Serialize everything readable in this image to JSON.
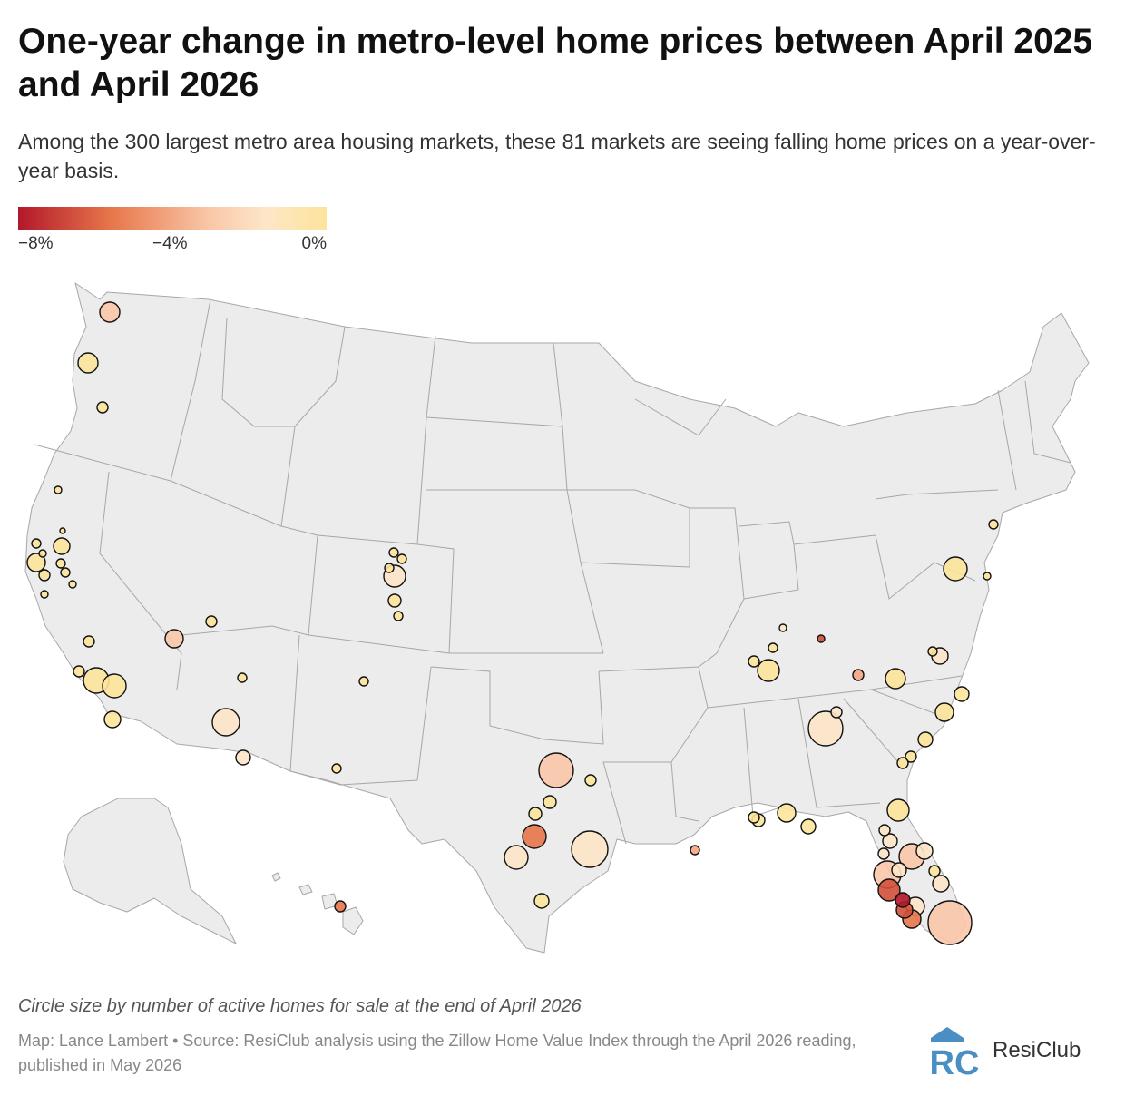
{
  "title": "One-year change in metro-level home prices between April 2025 and April 2026",
  "subtitle": "Among the 300 largest metro area housing markets, these 81 markets are seeing falling home prices on a year-over-year basis.",
  "legend": {
    "labels": [
      "−8%",
      "−4%",
      "0%"
    ],
    "colors": [
      "#b2182b",
      "#e7764a",
      "#f9c7a8",
      "#fde49b"
    ]
  },
  "note": "Circle size by number of active homes for sale at the end of April 2026",
  "source": "Map: Lance Lambert • Source: ResiClub analysis using the Zillow Home Value Index through the April 2026 reading, published in May 2026",
  "brand": {
    "name": "ResiClub",
    "logo_letters": "RC",
    "color": "#4a8fc4"
  },
  "colors": {
    "land": "#ececec",
    "border": "#a7a7a7",
    "circle_stroke": "#111111"
  }
}
